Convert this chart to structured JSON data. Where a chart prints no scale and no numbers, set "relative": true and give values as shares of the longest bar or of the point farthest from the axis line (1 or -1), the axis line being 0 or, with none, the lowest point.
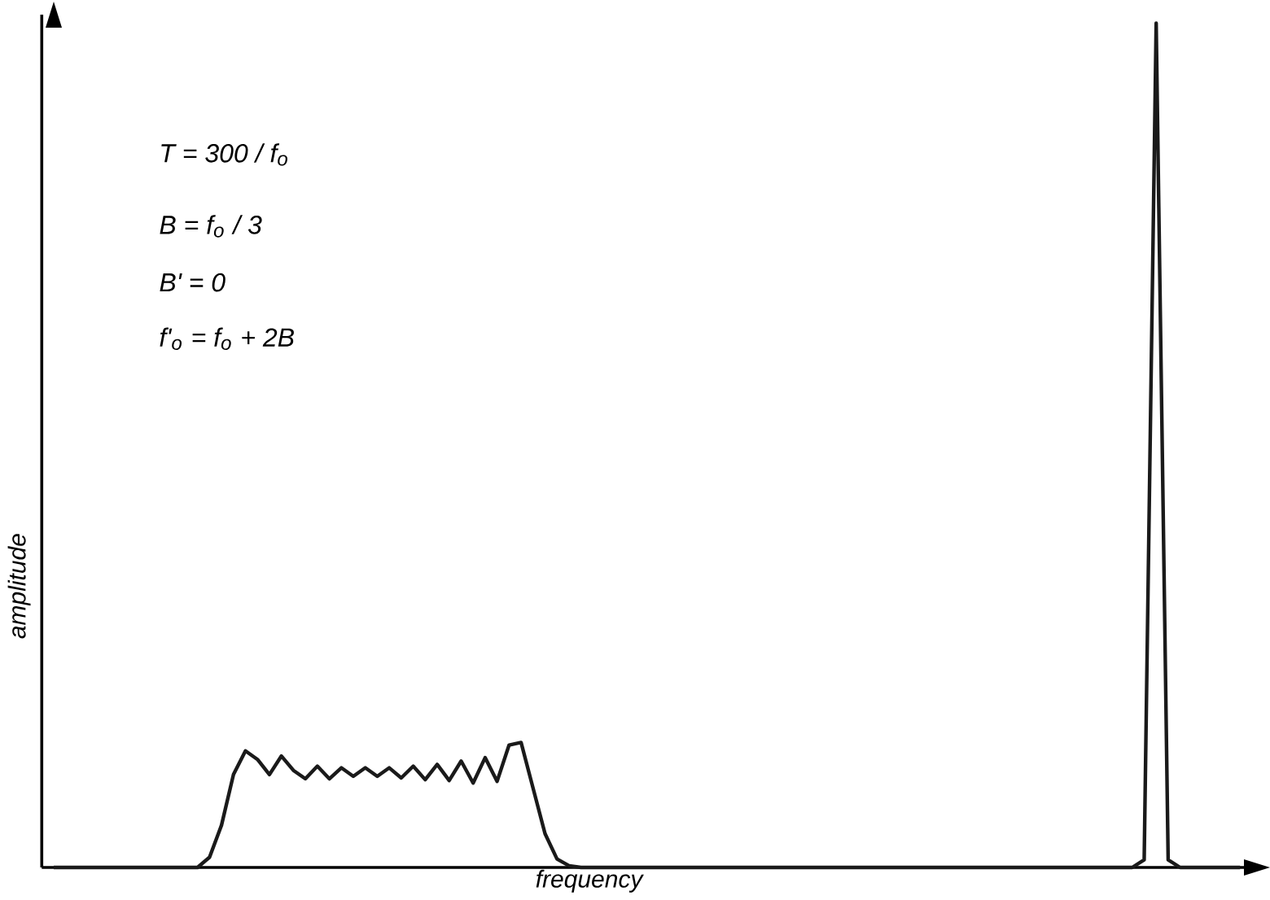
{
  "chart_data": {
    "type": "line",
    "relative": true,
    "xlabel": "frequency",
    "ylabel": "amplitude",
    "annotations": [
      "T = 300 / f$_{o}$",
      "B = f$_{o}$ / 3",
      "B' = 0",
      "f'$_{o}$ = f$_{o}$ + 2B"
    ],
    "marker": "none",
    "line_style": "solid",
    "categories": [
      null,
      null,
      null,
      null,
      null,
      null,
      null,
      null,
      null,
      null,
      null,
      null,
      null,
      null,
      null,
      null,
      null,
      null,
      null,
      null,
      null,
      null,
      null,
      null,
      null,
      null,
      null,
      null,
      null,
      null,
      null,
      null,
      null,
      null,
      null,
      null,
      null,
      null,
      null,
      null,
      null,
      null,
      null,
      null,
      null,
      null,
      null,
      null,
      null,
      null,
      null,
      null,
      null,
      null,
      null,
      null,
      null,
      null,
      null,
      null,
      null,
      null,
      null,
      null,
      null,
      null,
      null,
      null,
      null,
      null,
      null,
      null,
      null,
      null,
      null,
      null,
      null,
      null,
      null,
      null,
      null,
      null,
      null,
      null,
      null,
      null,
      null,
      null,
      null,
      null,
      null,
      null,
      null,
      null,
      null,
      null,
      null,
      null,
      null,
      null
    ],
    "series": [
      {
        "color": "#1a1a1a",
        "values": [
          0,
          0,
          0,
          0,
          0,
          0,
          0,
          0,
          0,
          0,
          0,
          0,
          0,
          0.012,
          0.05,
          0.11,
          0.138,
          0.128,
          0.11,
          0.132,
          0.115,
          0.105,
          0.12,
          0.105,
          0.118,
          0.108,
          0.118,
          0.108,
          0.118,
          0.106,
          0.12,
          0.104,
          0.122,
          0.103,
          0.126,
          0.1,
          0.13,
          0.102,
          0.145,
          0.148,
          0.094,
          0.04,
          0.01,
          0.002,
          0,
          0,
          0,
          0,
          0,
          0,
          0,
          0,
          0,
          0,
          0,
          0,
          0,
          0,
          0,
          0,
          0,
          0,
          0,
          0,
          0,
          0,
          0,
          0,
          0,
          0,
          0,
          0,
          0,
          0,
          0,
          0,
          0,
          0,
          0,
          0,
          0,
          0,
          0,
          0,
          0,
          0,
          0,
          0,
          0,
          0,
          0,
          0.009,
          1,
          0.009,
          0,
          0,
          0,
          0,
          0,
          0
        ]
      }
    ]
  }
}
